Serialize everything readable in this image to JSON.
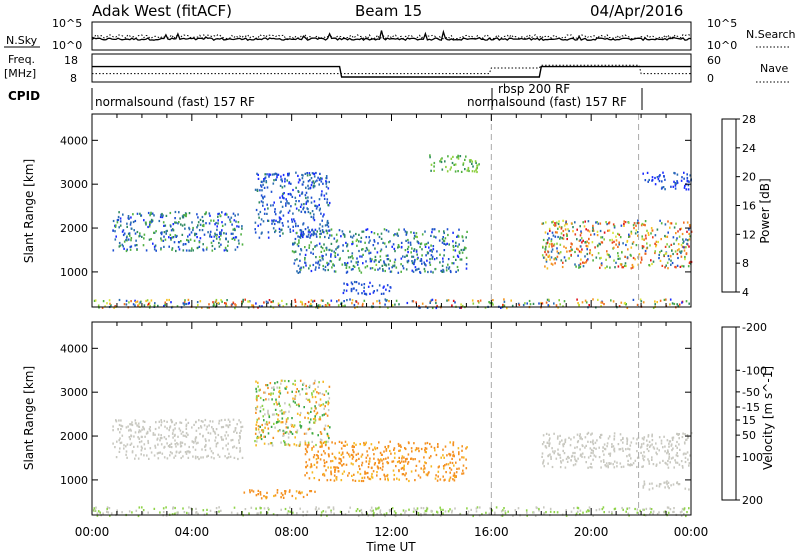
{
  "header": {
    "station": "Adak West (fitACF)",
    "beam": "Beam 15",
    "date": "04/Apr/2016"
  },
  "panels": {
    "nsky_label": "N.Sky",
    "nsky_ticks": [
      "10^5",
      "10^0"
    ],
    "nsearch_label": "N.Search",
    "freq_label_1": "Freq.",
    "freq_label_2": "[MHz]",
    "freq_ticks": [
      "18",
      "8"
    ],
    "nave_label": "Nave",
    "nave_ticks": [
      "60",
      "0"
    ],
    "cpid_label": "CPID",
    "cpid_segments": [
      "normalsound (fast) 157 RF",
      "rbsp 200 RF",
      "normalsound (fast) 157 RF"
    ],
    "power_label": "Power [dB]",
    "velocity_label": "Velocity [m s^-1]"
  },
  "chart_data": [
    {
      "type": "heatmap",
      "title": "",
      "xlabel": "Time UT",
      "ylabel": "Slant Range [km]",
      "xlim": [
        "00:00",
        "24:00"
      ],
      "ylim": [
        200,
        4600
      ],
      "x_ticks": [
        "00:00",
        "04:00",
        "08:00",
        "12:00",
        "16:00",
        "20:00",
        "00:00"
      ],
      "y_ticks": [
        1000,
        2000,
        3000,
        4000
      ],
      "colorbar": {
        "label": "Power [dB]",
        "ticks": [
          4,
          8,
          12,
          16,
          20,
          24,
          28
        ],
        "colors": [
          "#1a2bff",
          "#1c4fd0",
          "#2a6db0",
          "#2f8a60",
          "#50b042",
          "#8bcf3c",
          "#d6e43a",
          "#f6c222",
          "#f49520",
          "#ef6a1e",
          "#e8401a",
          "#e0101a"
        ]
      },
      "cpid_change_markers_hours": [
        16.0,
        21.9
      ],
      "features": [
        {
          "time_range_h": [
            0.8,
            6.0
          ],
          "range_km": [
            1500,
            2400
          ],
          "value_db": [
            4,
            14
          ]
        },
        {
          "time_range_h": [
            6.5,
            9.5
          ],
          "range_km": [
            1800,
            3300
          ],
          "value_db": [
            4,
            10
          ]
        },
        {
          "time_range_h": [
            8.0,
            15.0
          ],
          "range_km": [
            1000,
            2000
          ],
          "value_db": [
            4,
            14
          ]
        },
        {
          "time_range_h": [
            10.0,
            12.0
          ],
          "range_km": [
            500,
            800
          ],
          "value_db": [
            4,
            8
          ]
        },
        {
          "time_range_h": [
            13.5,
            15.5
          ],
          "range_km": [
            3300,
            3700
          ],
          "value_db": [
            10,
            16
          ]
        },
        {
          "time_range_h": [
            18.0,
            24.0
          ],
          "range_km": [
            1100,
            2200
          ],
          "value_db": [
            6,
            28
          ]
        },
        {
          "time_range_h": [
            22.0,
            24.0
          ],
          "range_km": [
            2900,
            3300
          ],
          "value_db": [
            4,
            8
          ]
        },
        {
          "time_range_h": [
            0.0,
            24.0
          ],
          "range_km": [
            200,
            400
          ],
          "value_db": [
            4,
            28
          ]
        }
      ]
    },
    {
      "type": "heatmap",
      "title": "",
      "xlabel": "Time UT",
      "ylabel": "Slant Range [km]",
      "xlim": [
        "00:00",
        "24:00"
      ],
      "ylim": [
        200,
        4600
      ],
      "x_ticks": [
        "00:00",
        "04:00",
        "08:00",
        "12:00",
        "16:00",
        "20:00",
        "00:00"
      ],
      "y_ticks": [
        1000,
        2000,
        3000,
        4000
      ],
      "colorbar": {
        "label": "Velocity [m s^-1]",
        "ticks": [
          200,
          100,
          50,
          15,
          -15,
          -50,
          -100,
          -200
        ],
        "colors": [
          "#1a2bff",
          "#2050c0",
          "#2a8060",
          "#3aa648",
          "#8fd34a",
          "#c8c8c0",
          "#f6b820",
          "#f49020",
          "#ef6820",
          "#e8401a",
          "#e0101a"
        ]
      },
      "cpid_change_markers_hours": [
        16.0,
        21.9
      ],
      "features": [
        {
          "time_range_h": [
            0.8,
            6.0
          ],
          "range_km": [
            1500,
            2400
          ],
          "velocity_ms": [
            -15,
            15
          ]
        },
        {
          "time_range_h": [
            6.5,
            9.5
          ],
          "range_km": [
            1800,
            3300
          ],
          "velocity_ms": [
            -100,
            100
          ]
        },
        {
          "time_range_h": [
            8.5,
            15.0
          ],
          "range_km": [
            1000,
            1900
          ],
          "velocity_ms": [
            -100,
            -50
          ]
        },
        {
          "time_range_h": [
            6.0,
            9.0
          ],
          "range_km": [
            600,
            800
          ],
          "velocity_ms": [
            -100,
            -50
          ]
        },
        {
          "time_range_h": [
            18.0,
            24.0
          ],
          "range_km": [
            1300,
            2100
          ],
          "velocity_ms": [
            -15,
            15
          ]
        },
        {
          "time_range_h": [
            22.0,
            24.0
          ],
          "range_km": [
            800,
            1000
          ],
          "velocity_ms": [
            -15,
            15
          ]
        },
        {
          "time_range_h": [
            0.0,
            24.0
          ],
          "range_km": [
            200,
            400
          ],
          "velocity_ms": [
            -15,
            50
          ]
        }
      ]
    }
  ]
}
